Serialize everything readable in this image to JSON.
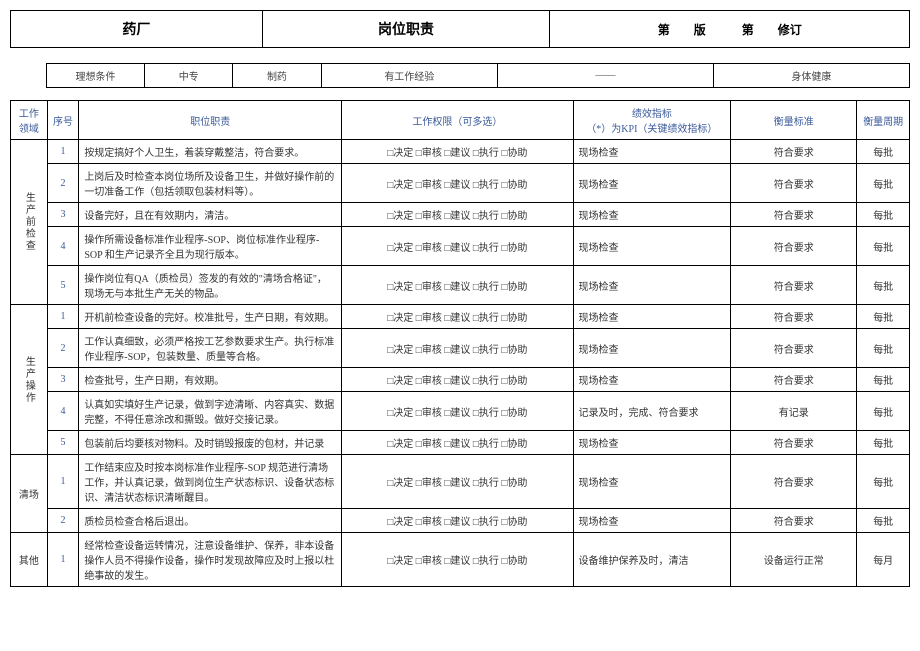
{
  "colors": {
    "border": "#000000",
    "text_heading": "#3a5a9a",
    "text_body": "#333333",
    "background": "#ffffff"
  },
  "header": {
    "company": "药厂",
    "title": "岗位职责",
    "version": "第　　版　　　第　　修订"
  },
  "conditions": {
    "label": "理想条件",
    "education": "中专",
    "major": "制药",
    "experience": "有工作经验",
    "dash": "——",
    "health": "身体健康"
  },
  "table": {
    "headers": {
      "area": "工作领域",
      "seq": "序号",
      "duty": "职位职责",
      "perm": "工作权限（可多选）",
      "kpi": "绩效指标\n（*）为KPI（关键绩效指标）",
      "std": "衡量标准",
      "cycle": "衡量周期"
    },
    "perm_options": "□决定 □审核 □建议 □执行 □协助",
    "sections": [
      {
        "area": "生产前检查",
        "rows": [
          {
            "seq": "1",
            "duty": "按规定搞好个人卫生，着装穿戴整洁，符合要求。",
            "kpi": "现场检查",
            "std": "符合要求",
            "cycle": "每批"
          },
          {
            "seq": "2",
            "duty": "上岗后及时检查本岗位场所及设备卫生，并做好操作前的一切准备工作（包括领取包装材料等）。",
            "kpi": "现场检查",
            "std": "符合要求",
            "cycle": "每批"
          },
          {
            "seq": "3",
            "duty": "设备完好，且在有效期内，清洁。",
            "kpi": "现场检查",
            "std": "符合要求",
            "cycle": "每批"
          },
          {
            "seq": "4",
            "duty": "操作所需设备标准作业程序-SOP、岗位标准作业程序-SOP 和生产记录齐全且为现行版本。",
            "kpi": "现场检查",
            "std": "符合要求",
            "cycle": "每批"
          },
          {
            "seq": "5",
            "duty": "操作岗位有QA（质检员）签发的有效的\"清场合格证\"，现场无与本批生产无关的物品。",
            "kpi": "现场检查",
            "std": "符合要求",
            "cycle": "每批"
          }
        ]
      },
      {
        "area": "生产操作",
        "rows": [
          {
            "seq": "1",
            "duty": "开机前检查设备的完好。校准批号，生产日期，有效期。",
            "kpi": "现场检查",
            "std": "符合要求",
            "cycle": "每批"
          },
          {
            "seq": "2",
            "duty": "工作认真细致，必须严格按工艺参数要求生产。执行标准作业程序-SOP，包装数量、质量等合格。",
            "kpi": "现场检查",
            "std": "符合要求",
            "cycle": "每批"
          },
          {
            "seq": "3",
            "duty": "检查批号，生产日期，有效期。",
            "kpi": "现场检查",
            "std": "符合要求",
            "cycle": "每批"
          },
          {
            "seq": "4",
            "duty": "认真如实填好生产记录，做到字迹清晰、内容真实、数据完整，不得任意涂改和撕毁。做好交接记录。",
            "kpi": "记录及时，完成、符合要求",
            "std": "有记录",
            "cycle": "每批"
          },
          {
            "seq": "5",
            "duty": "包装前后均要核对物料。及时销毁报废的包材，并记录",
            "kpi": "现场检查",
            "std": "符合要求",
            "cycle": "每批"
          }
        ]
      },
      {
        "area": "清场",
        "rows": [
          {
            "seq": "1",
            "duty": "工作结束应及时按本岗标准作业程序-SOP 规范进行清场工作，并认真记录，做到岗位生产状态标识、设备状态标识、清洁状态标识清晰醒目。",
            "kpi": "现场检查",
            "std": "符合要求",
            "cycle": "每批"
          },
          {
            "seq": "2",
            "duty": "质检员检查合格后退出。",
            "kpi": "现场检查",
            "std": "符合要求",
            "cycle": "每批"
          }
        ]
      },
      {
        "area": "其他",
        "rows": [
          {
            "seq": "1",
            "duty": "经常检查设备运转情况，注意设备维护、保养，非本设备操作人员不得操作设备，操作时发现故障应及时上报以杜绝事故的发生。",
            "kpi": "设备维护保养及时，清洁",
            "std": "设备运行正常",
            "cycle": "每月"
          }
        ]
      }
    ]
  }
}
